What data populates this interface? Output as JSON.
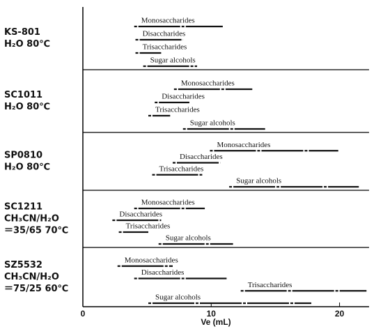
{
  "chart_data": {
    "type": "range",
    "xlabel": "Ve (mL)",
    "xlim": [
      0,
      22.3
    ],
    "xticks": [
      0,
      10,
      20
    ],
    "panels": [
      {
        "label": [
          "KS-801",
          "H₂O 80℃"
        ],
        "series": [
          {
            "name": "Monosaccharides",
            "start": 4.0,
            "end": 10.9
          },
          {
            "name": "Disaccharides",
            "start": 4.1,
            "end": 7.8
          },
          {
            "name": "Trisaccharides",
            "start": 4.1,
            "end": 6.1
          },
          {
            "name": "Sugar alcohols",
            "start": 4.7,
            "end": 8.9
          }
        ]
      },
      {
        "label": [
          "SC1011",
          "H₂O 80℃"
        ],
        "series": [
          {
            "name": "Monosaccharides",
            "start": 7.1,
            "end": 13.2
          },
          {
            "name": "Disaccharides",
            "start": 5.6,
            "end": 8.3
          },
          {
            "name": "Trisaccharides",
            "start": 5.1,
            "end": 6.8
          },
          {
            "name": "Sugar alcohols",
            "start": 7.8,
            "end": 14.2
          }
        ]
      },
      {
        "label": [
          "SP0810",
          "H₂O 80℃"
        ],
        "series": [
          {
            "name": "Monosaccharides",
            "start": 9.9,
            "end": 19.9
          },
          {
            "name": "Disaccharides",
            "start": 7.0,
            "end": 10.7
          },
          {
            "name": "Trisaccharides",
            "start": 5.4,
            "end": 9.3
          },
          {
            "name": "Sugar alcohols",
            "start": 11.4,
            "end": 21.5
          }
        ]
      },
      {
        "label": [
          "SC1211",
          "CH₃CN/H₂O",
          "＝35/65 70℃"
        ],
        "series": [
          {
            "name": "Monosaccharides",
            "start": 4.0,
            "end": 9.5
          },
          {
            "name": "Disaccharides",
            "start": 2.3,
            "end": 6.1
          },
          {
            "name": "Trisaccharides",
            "start": 2.8,
            "end": 5.1
          },
          {
            "name": "Sugar alcohols",
            "start": 5.9,
            "end": 11.7
          }
        ]
      },
      {
        "label": [
          "SZ5532",
          "CH₃CN/H₂O",
          "＝75/25 60℃"
        ],
        "series": [
          {
            "name": "Monosaccharides",
            "start": 2.7,
            "end": 7.0
          },
          {
            "name": "Disaccharides",
            "start": 4.0,
            "end": 11.2
          },
          {
            "name": "Trisaccharides",
            "start": 12.3,
            "end": 22.1
          },
          {
            "name": "Sugar alcohols",
            "start": 5.1,
            "end": 17.8
          }
        ]
      }
    ]
  }
}
